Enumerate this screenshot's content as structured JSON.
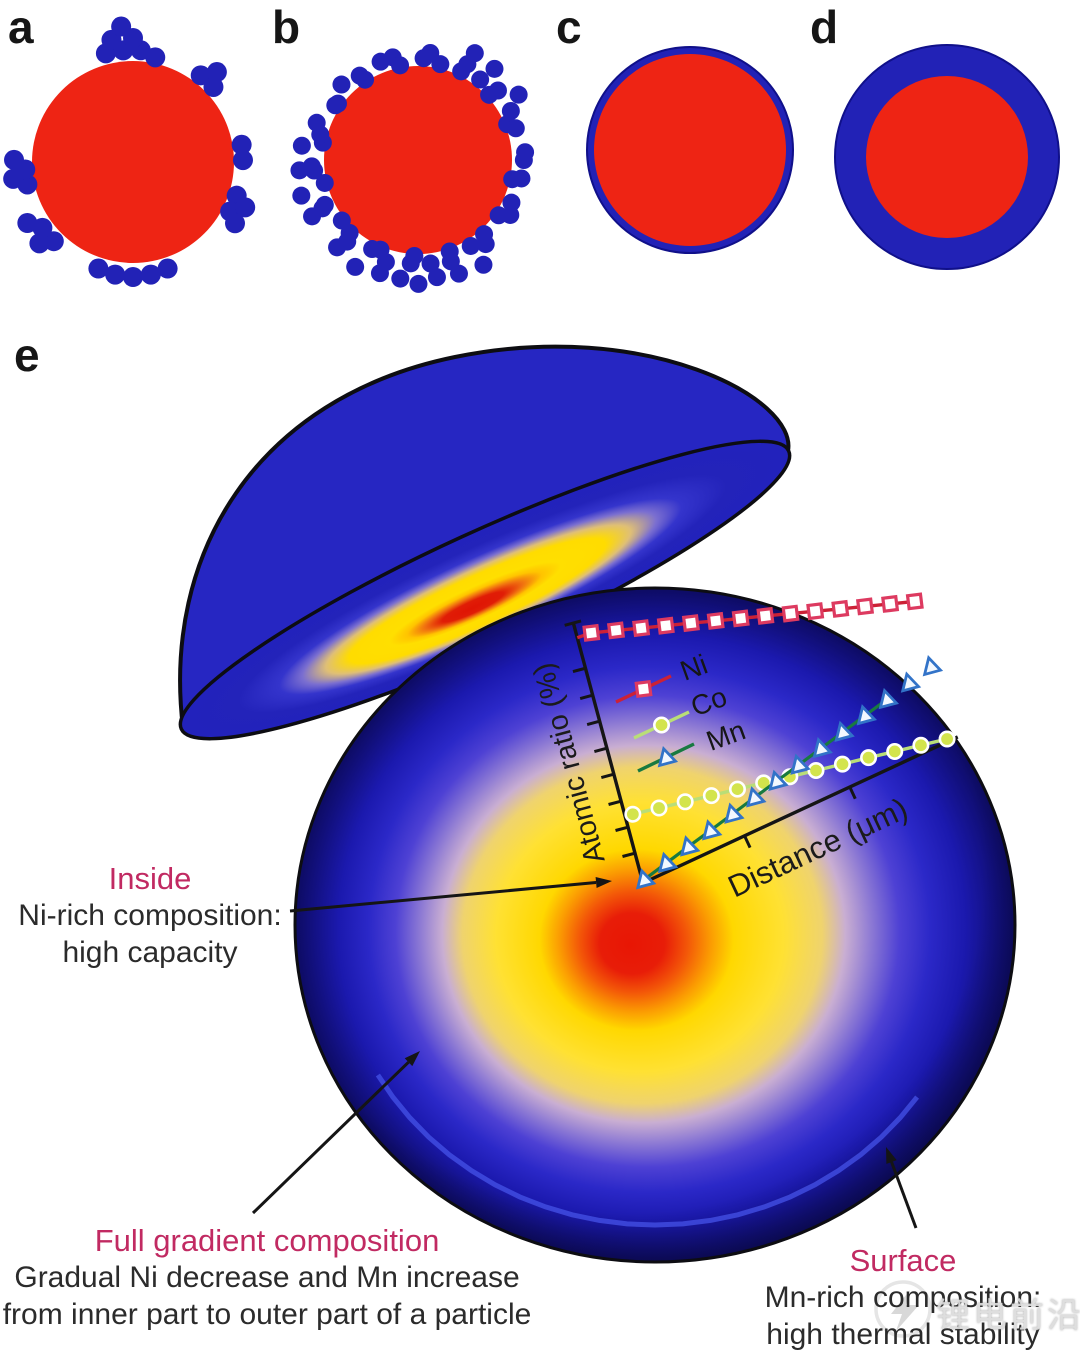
{
  "panel_labels": {
    "a": "a",
    "b": "b",
    "c": "c",
    "d": "d",
    "e": "e"
  },
  "annotations": {
    "inside": {
      "title": "Inside",
      "line1": "Ni-rich composition:",
      "line2": "high capacity"
    },
    "full_gradient": {
      "title": "Full gradient composition",
      "line1": "Gradual Ni decrease and Mn increase",
      "line2": "from inner part to outer part of a particle"
    },
    "surface": {
      "title": "Surface",
      "line1": "Mn-rich composition:",
      "line2": "high thermal stability"
    }
  },
  "chart_data": {
    "type": "line",
    "title": "",
    "xlabel": "Distance (μm)",
    "ylabel": "Atomic ratio (%)",
    "x_range_um": [
      0,
      11.5
    ],
    "y_range_pct": [
      0,
      100
    ],
    "tick_labels": "none (unlabeled tick marks on both axes)",
    "legend_position": "upper-left inside plot, rotated with axes",
    "plot_rotation_deg": -25,
    "series": [
      {
        "name": "Ni",
        "marker": "open-square",
        "x": [
          0.5,
          1.33,
          2.17,
          3.0,
          3.84,
          4.67,
          5.51,
          6.34,
          7.18,
          8.01,
          8.85,
          9.68,
          10.52,
          11.35
        ],
        "y": [
          97,
          93.8,
          90.5,
          87.3,
          84.1,
          80.8,
          77.6,
          74.4,
          71.1,
          67.9,
          64.6,
          61.4,
          58.2,
          55
        ]
      },
      {
        "name": "Co",
        "marker": "filled-circle",
        "x": [
          0.27,
          1.18,
          2.09,
          3.0,
          3.91,
          4.82,
          5.73,
          6.64,
          7.56,
          8.47,
          9.38,
          10.29,
          11.2
        ],
        "y": [
          26,
          23.9,
          21.8,
          19.7,
          17.7,
          15.6,
          13.5,
          11.4,
          9.3,
          7.3,
          5.2,
          3.1,
          1.0
        ]
      },
      {
        "name": "Mn",
        "marker": "open-triangle",
        "x": [
          0.07,
          0.93,
          1.8,
          2.66,
          3.53,
          4.39,
          5.26,
          6.12,
          6.99,
          7.85,
          8.72,
          9.58,
          10.45,
          11.31
        ],
        "y": [
          1,
          3.2,
          5.4,
          7.5,
          9.7,
          11.9,
          14.1,
          16.2,
          18.4,
          20.6,
          22.8,
          24.9,
          27.1,
          29.3
        ]
      }
    ]
  },
  "watermark": {
    "text": "锂电前沿",
    "icon": "speech-bubble-lightning-icon"
  },
  "colors": {
    "red": "#ee2414",
    "blue": "#2222b6",
    "dome_blue": "#2626c2",
    "ring_edge": "#10108a",
    "outline": "#0d0d12",
    "crimson_text": "#c12a62",
    "body_text": "#2b2b2b",
    "ni_line": "#cc2136",
    "ni_marker": "#dd3a60",
    "co_line": "#b9de77",
    "co_fill": "#d3e44c",
    "mn_line": "#187a40",
    "mn_edge": "#3273c8",
    "axis": "#151515",
    "rim_arc": "#4553e8",
    "watermark_gray": "#dcdcdc"
  }
}
